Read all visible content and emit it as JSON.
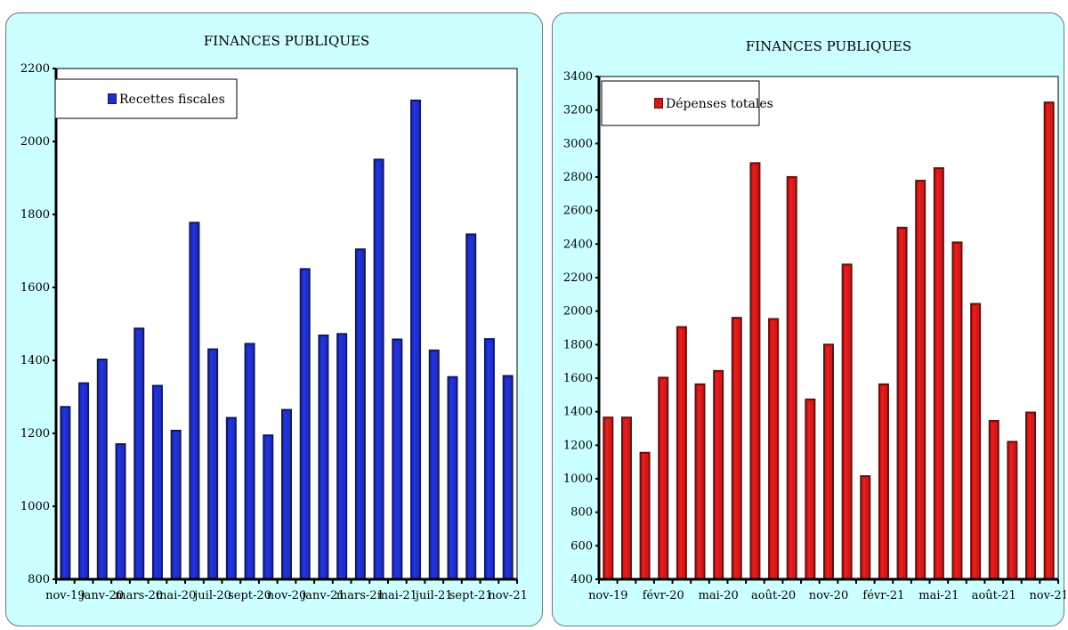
{
  "chart_data": [
    {
      "type": "bar",
      "title": "FINANCES PUBLIQUES",
      "legend": "top-left",
      "grid": false,
      "ylim": [
        800,
        2200
      ],
      "yticks": [
        800,
        1000,
        1200,
        1400,
        1600,
        1800,
        2000,
        2200
      ],
      "categories": [
        "nov-19",
        "déc-19",
        "janv-20",
        "févr-20",
        "mars-20",
        "avr-20",
        "mai-20",
        "juin-20",
        "juil-20",
        "août-20",
        "sept-20",
        "oct-20",
        "nov-20",
        "déc-20",
        "janv-21",
        "févr-21",
        "mars-21",
        "avr-21",
        "mai-21",
        "juin-21",
        "juil-21",
        "août-21",
        "sept-21",
        "oct-21",
        "nov-21"
      ],
      "xtick_labels": [
        "nov-19",
        "janv-20",
        "mars-20",
        "mai-20",
        "juil-20",
        "sept-20",
        "nov-20",
        "janv-21",
        "mars-21",
        "mai-21",
        "juil-21",
        "sept-21",
        "nov-21"
      ],
      "xtick_every": 2,
      "series": [
        {
          "name": "Recettes fiscales",
          "color": "#1f2fc8",
          "values": [
            1270,
            1335,
            1400,
            1168,
            1485,
            1328,
            1205,
            1775,
            1428,
            1240,
            1443,
            1192,
            1262,
            1648,
            1466,
            1470,
            1702,
            1948,
            1455,
            2110,
            1425,
            1352,
            1743,
            1456,
            1355
          ]
        }
      ]
    },
    {
      "type": "bar",
      "title": "FINANCES PUBLIQUES",
      "legend": "top-left",
      "grid": false,
      "ylim": [
        400,
        3400
      ],
      "yticks": [
        400,
        600,
        800,
        1000,
        1200,
        1400,
        1600,
        1800,
        2000,
        2200,
        2400,
        2600,
        2800,
        3000,
        3200,
        3400
      ],
      "categories": [
        "nov-19",
        "déc-19",
        "janv-20",
        "févr-20",
        "mars-20",
        "avr-20",
        "mai-20",
        "juin-20",
        "juil-20",
        "août-20",
        "sept-20",
        "oct-20",
        "nov-20",
        "déc-20",
        "janv-21",
        "févr-21",
        "mars-21",
        "avr-21",
        "mai-21",
        "juin-21",
        "juil-21",
        "août-21",
        "sept-21",
        "oct-21",
        "nov-21"
      ],
      "xtick_labels": [
        "nov-19",
        "févr-20",
        "mai-20",
        "août-20",
        "nov-20",
        "févr-21",
        "mai-21",
        "août-21",
        "nov-21"
      ],
      "xtick_every": 3,
      "series": [
        {
          "name": "Dépenses totales",
          "color": "#d31a1a",
          "values": [
            1360,
            1360,
            1150,
            1598,
            1900,
            1558,
            1638,
            1955,
            2878,
            1948,
            2795,
            1468,
            1795,
            2273,
            1010,
            1558,
            2493,
            2773,
            2848,
            2405,
            2038,
            1340,
            1215,
            1390,
            3240
          ]
        }
      ]
    }
  ]
}
